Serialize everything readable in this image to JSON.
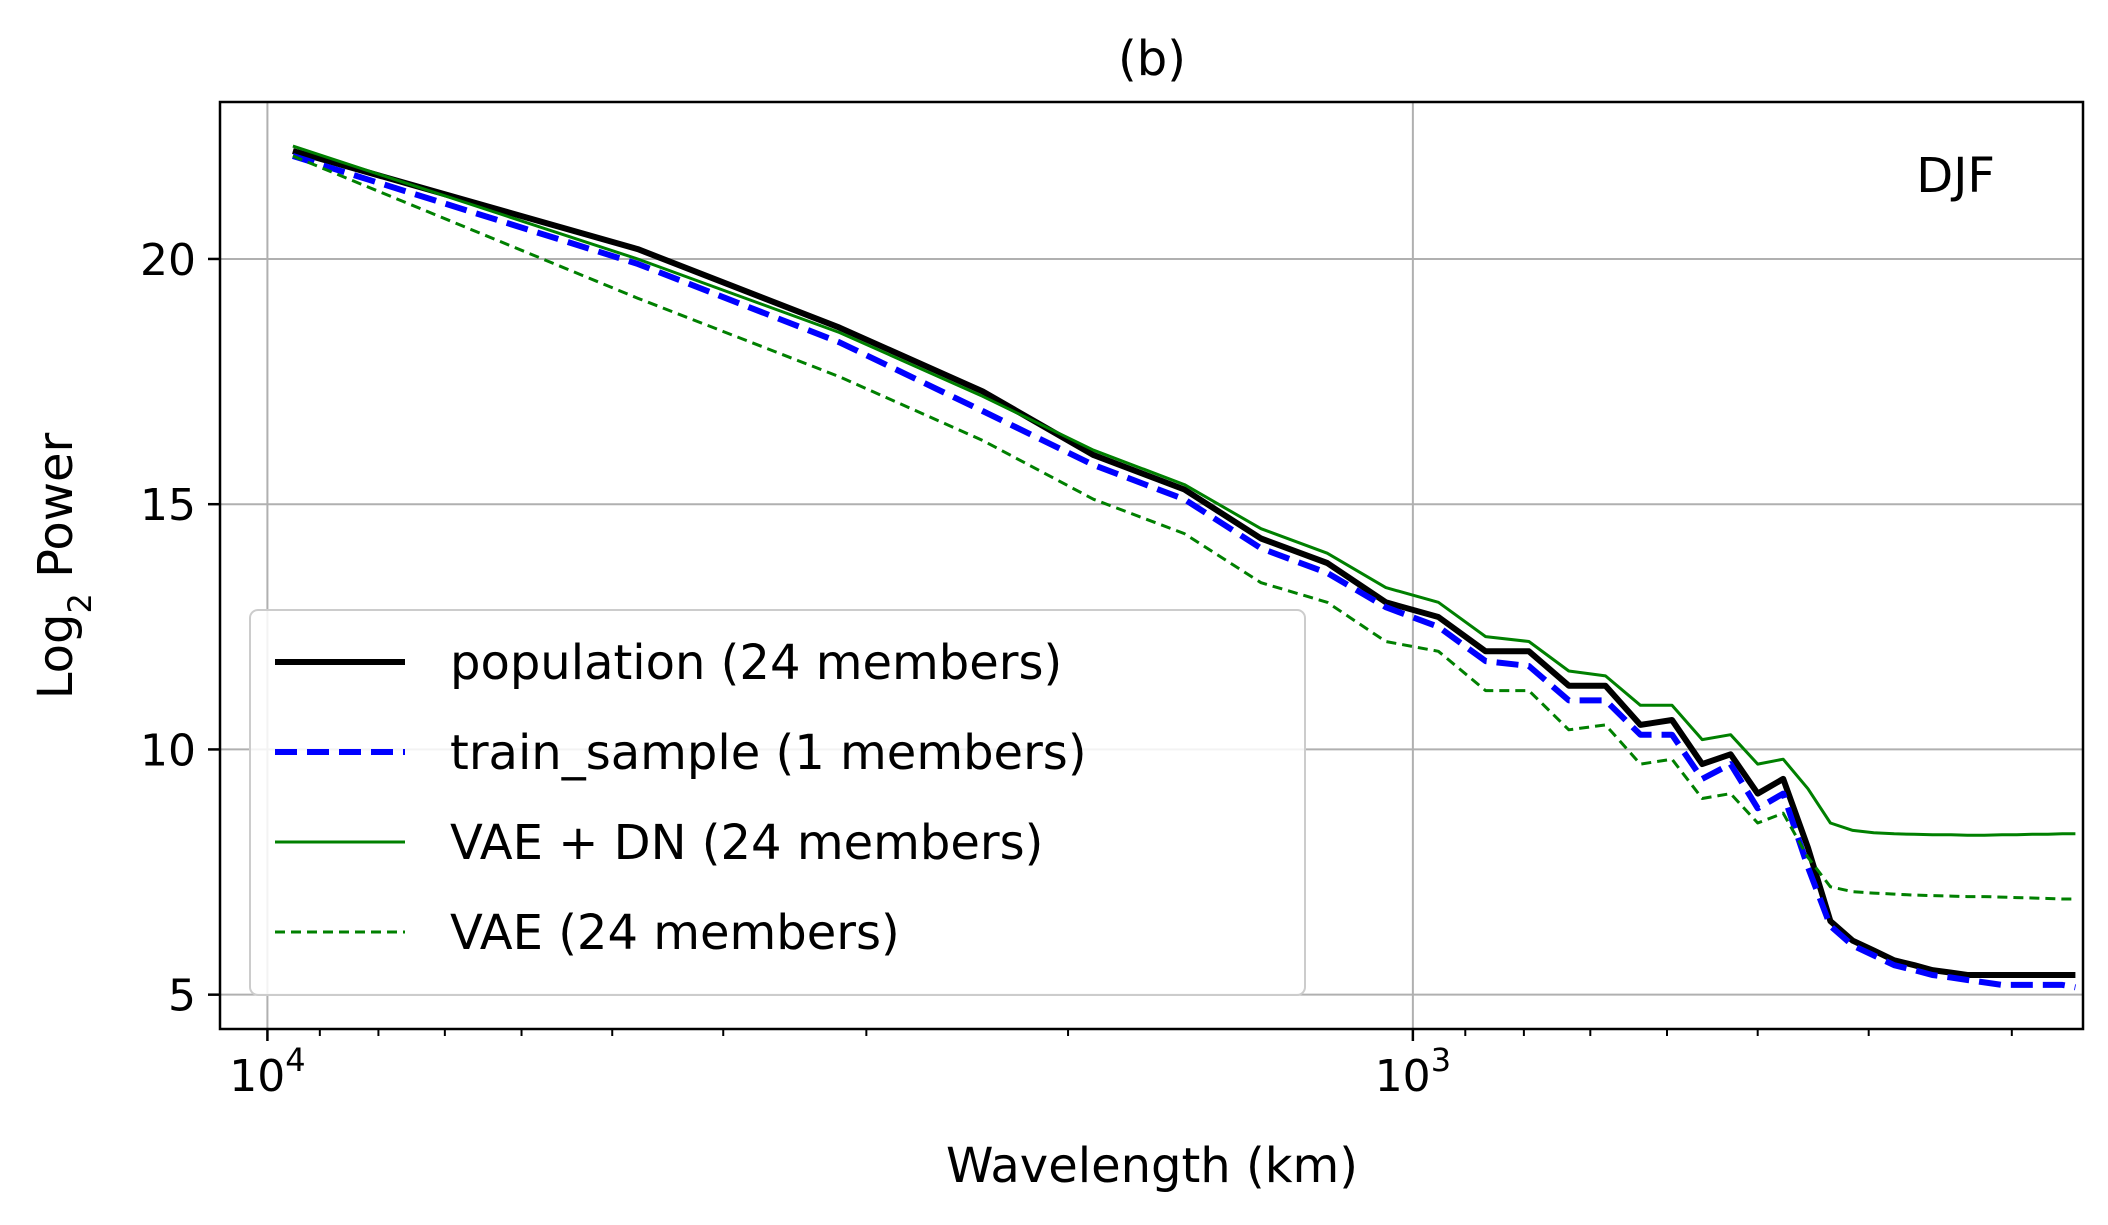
{
  "chart_data": {
    "type": "line",
    "title": "(b)",
    "annotation": "DJF",
    "xlabel": "Wavelength (km)",
    "ylabel_main": "Log",
    "ylabel_sub": "2",
    "ylabel_rest": " Power",
    "x_scale": "log-reversed",
    "xlim": [
      11000,
      260
    ],
    "ylim": [
      4.3,
      23.2
    ],
    "grid": true,
    "legend_position": "lower-left",
    "x_ticks": [
      {
        "value": 10000,
        "base": "10",
        "exp": "4"
      },
      {
        "value": 1000,
        "base": "10",
        "exp": "3"
      }
    ],
    "y_ticks": [
      5,
      10,
      15,
      20
    ],
    "series": [
      {
        "name": "population (24 members)",
        "color": "#000000",
        "dash": "solid",
        "weight": "thick",
        "x": [
          9500,
          4750,
          3167,
          2375,
          1900,
          1583,
          1357,
          1188,
          1056,
          950,
          864,
          792,
          731,
          679,
          633,
          594,
          559,
          528,
          500,
          475,
          452,
          432,
          413,
          396,
          380,
          365,
          352,
          339,
          328,
          317,
          306,
          297,
          288,
          279,
          271,
          264
        ],
        "values": [
          22.2,
          20.2,
          18.6,
          17.3,
          16.0,
          15.3,
          14.3,
          13.8,
          13.0,
          12.7,
          12.0,
          12.0,
          11.3,
          11.3,
          10.5,
          10.6,
          9.7,
          9.9,
          9.1,
          9.4,
          8.0,
          6.5,
          6.1,
          5.9,
          5.7,
          5.6,
          5.5,
          5.45,
          5.4,
          5.4,
          5.4,
          5.4,
          5.4,
          5.4,
          5.4,
          5.4
        ]
      },
      {
        "name": "train_sample (1 members)",
        "color": "#0000ff",
        "dash": "dash",
        "weight": "thick",
        "x": [
          9500,
          4750,
          3167,
          2375,
          1900,
          1583,
          1357,
          1188,
          1056,
          950,
          864,
          792,
          731,
          679,
          633,
          594,
          559,
          528,
          500,
          475,
          452,
          432,
          413,
          396,
          380,
          365,
          352,
          339,
          328,
          317,
          306,
          297,
          288,
          279,
          271,
          264
        ],
        "values": [
          22.1,
          19.9,
          18.3,
          16.9,
          15.8,
          15.1,
          14.1,
          13.6,
          12.9,
          12.5,
          11.8,
          11.7,
          11.0,
          11.0,
          10.3,
          10.3,
          9.4,
          9.7,
          8.8,
          9.1,
          7.6,
          6.4,
          6.0,
          5.8,
          5.6,
          5.5,
          5.4,
          5.35,
          5.3,
          5.25,
          5.2,
          5.2,
          5.2,
          5.2,
          5.2,
          5.15
        ]
      },
      {
        "name": "VAE + DN (24 members)",
        "color": "#008000",
        "dash": "solid",
        "weight": "thin",
        "x": [
          9500,
          4750,
          3167,
          2375,
          1900,
          1583,
          1357,
          1188,
          1056,
          950,
          864,
          792,
          731,
          679,
          633,
          594,
          559,
          528,
          500,
          475,
          452,
          432,
          413,
          396,
          380,
          365,
          352,
          339,
          328,
          317,
          306,
          297,
          288,
          279,
          271,
          264
        ],
        "values": [
          22.3,
          20.0,
          18.5,
          17.2,
          16.1,
          15.4,
          14.5,
          14.0,
          13.3,
          13.0,
          12.3,
          12.2,
          11.6,
          11.5,
          10.9,
          10.9,
          10.2,
          10.3,
          9.7,
          9.8,
          9.2,
          8.5,
          8.35,
          8.3,
          8.28,
          8.27,
          8.26,
          8.26,
          8.25,
          8.25,
          8.26,
          8.26,
          8.27,
          8.27,
          8.28,
          8.28
        ]
      },
      {
        "name": "VAE (24 members)",
        "color": "#008000",
        "dash": "dash",
        "weight": "thin",
        "x": [
          9500,
          4750,
          3167,
          2375,
          1900,
          1583,
          1357,
          1188,
          1056,
          950,
          864,
          792,
          731,
          679,
          633,
          594,
          559,
          528,
          500,
          475,
          452,
          432,
          413,
          396,
          380,
          365,
          352,
          339,
          328,
          317,
          306,
          297,
          288,
          279,
          271,
          264
        ],
        "values": [
          22.1,
          19.2,
          17.6,
          16.3,
          15.1,
          14.4,
          13.4,
          13.0,
          12.2,
          12.0,
          11.2,
          11.2,
          10.4,
          10.5,
          9.7,
          9.8,
          9.0,
          9.1,
          8.5,
          8.7,
          7.8,
          7.2,
          7.1,
          7.07,
          7.05,
          7.03,
          7.02,
          7.01,
          7.0,
          7.0,
          6.99,
          6.98,
          6.97,
          6.96,
          6.95,
          6.95
        ]
      }
    ]
  }
}
